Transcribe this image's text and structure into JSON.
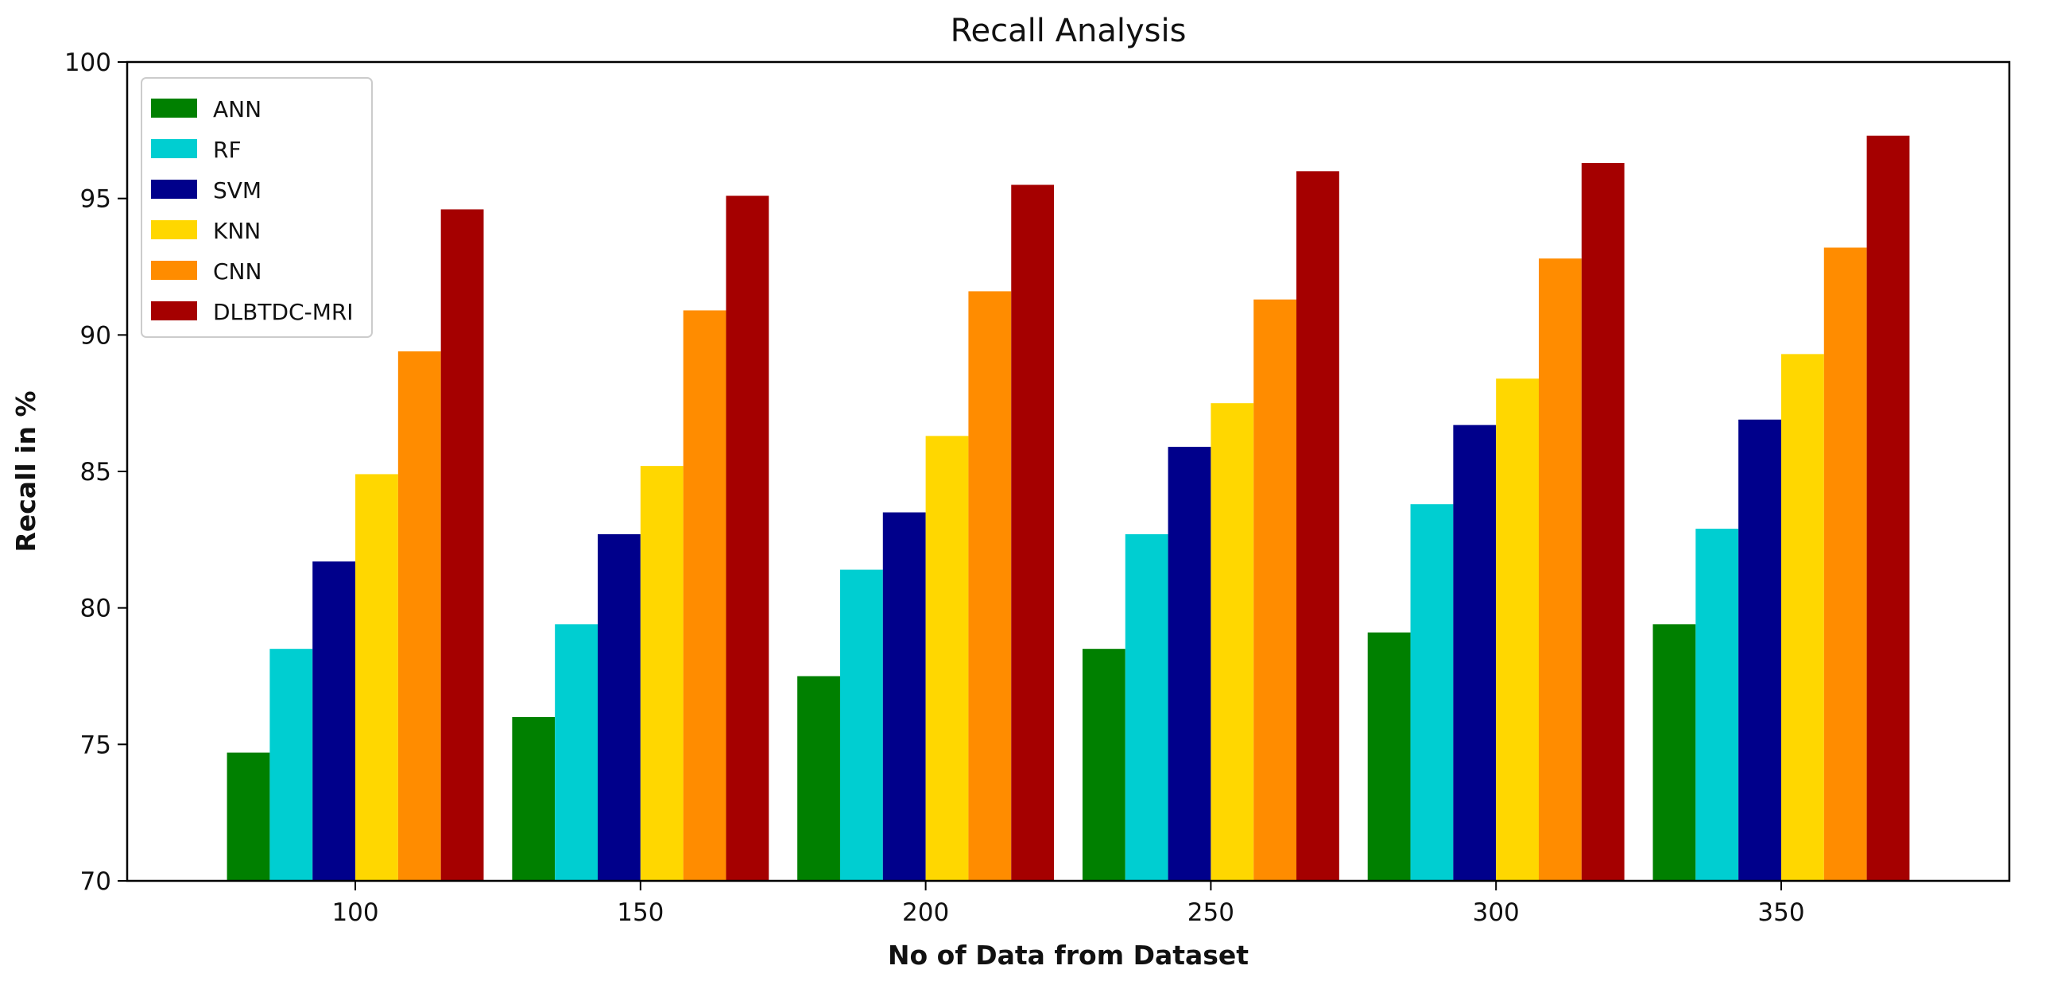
{
  "chart_data": {
    "type": "bar",
    "title": "Recall Analysis",
    "xlabel": "No of Data from Dataset",
    "ylabel": "Recall in %",
    "categories": [
      "100",
      "150",
      "200",
      "250",
      "300",
      "350"
    ],
    "ylim": [
      70,
      100
    ],
    "yticks": [
      70,
      75,
      80,
      85,
      90,
      95,
      100
    ],
    "grid": false,
    "legend_position": "top-left",
    "series": [
      {
        "name": "ANN",
        "color": "#008000",
        "values": [
          74.7,
          76.0,
          77.5,
          78.5,
          79.1,
          79.4
        ]
      },
      {
        "name": "RF",
        "color": "#00CED1",
        "values": [
          78.5,
          79.4,
          81.4,
          82.7,
          83.8,
          82.9
        ]
      },
      {
        "name": "SVM",
        "color": "#00008B",
        "values": [
          81.7,
          82.7,
          83.5,
          85.9,
          86.7,
          86.9
        ]
      },
      {
        "name": "KNN",
        "color": "#FFD700",
        "values": [
          84.9,
          85.2,
          86.3,
          87.5,
          88.4,
          89.3
        ]
      },
      {
        "name": "CNN",
        "color": "#FF8C00",
        "values": [
          89.4,
          90.9,
          91.6,
          91.3,
          92.8,
          93.2
        ]
      },
      {
        "name": "DLBTDC-MRI",
        "color": "#A50000",
        "values": [
          94.6,
          95.1,
          95.5,
          96.0,
          96.3,
          97.3
        ]
      }
    ]
  }
}
